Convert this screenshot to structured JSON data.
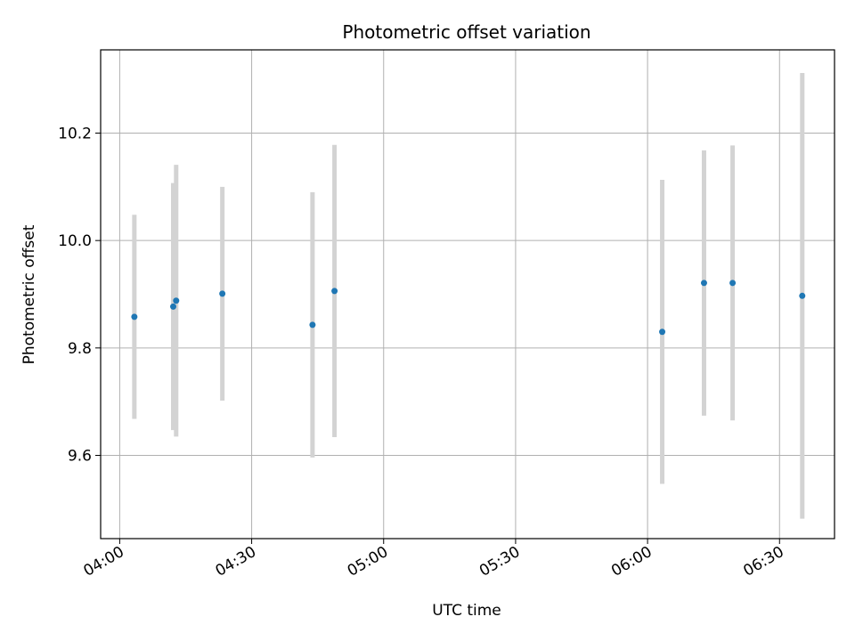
{
  "chart_data": {
    "type": "scatter",
    "title": "Photometric offset variation",
    "xlabel": "UTC time",
    "ylabel": "Photometric offset",
    "x_ticks": [
      "04:00",
      "04:30",
      "05:00",
      "05:30",
      "06:00",
      "06:30"
    ],
    "y_ticks": [
      "9.6",
      "9.8",
      "10.0",
      "10.2"
    ],
    "xlim": [
      "03:55:40",
      "06:42:30"
    ],
    "ylim": [
      9.445,
      10.355
    ],
    "grid": true,
    "marker_color": "#1f77b4",
    "errorbar_color": "#d3d3d3",
    "points": [
      {
        "x": "04:03:20",
        "y": 9.858,
        "err": 0.19
      },
      {
        "x": "04:12:10",
        "y": 9.877,
        "err": 0.23
      },
      {
        "x": "04:12:50",
        "y": 9.888,
        "err": 0.253
      },
      {
        "x": "04:23:20",
        "y": 9.901,
        "err": 0.199
      },
      {
        "x": "04:43:50",
        "y": 9.843,
        "err": 0.247
      },
      {
        "x": "04:48:50",
        "y": 9.906,
        "err": 0.272
      },
      {
        "x": "06:03:20",
        "y": 9.83,
        "err": 0.283
      },
      {
        "x": "06:12:50",
        "y": 9.921,
        "err": 0.247
      },
      {
        "x": "06:19:20",
        "y": 9.921,
        "err": 0.256
      },
      {
        "x": "06:35:10",
        "y": 9.897,
        "err": 0.415
      }
    ]
  }
}
